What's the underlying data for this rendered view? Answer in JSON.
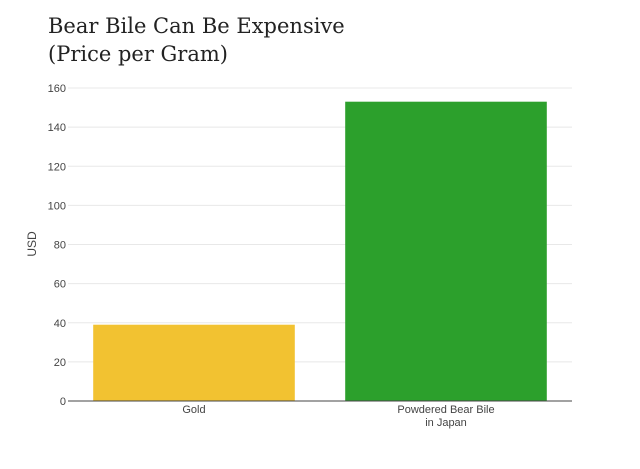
{
  "chart_data": {
    "type": "bar",
    "title_lines": [
      "Bear Bile Can Be Expensive",
      "(Price per Gram)"
    ],
    "ylabel": "USD",
    "xlabel": "",
    "ylim": [
      0,
      160
    ],
    "yticks": [
      0,
      20,
      40,
      60,
      80,
      100,
      120,
      140,
      160
    ],
    "categories": [
      [
        "Gold"
      ],
      [
        "Powdered Bear Bile",
        "in Japan"
      ]
    ],
    "values": [
      39,
      153
    ],
    "colors": [
      "#f2c231",
      "#2ca02c"
    ],
    "grid": true,
    "legend": "none"
  }
}
